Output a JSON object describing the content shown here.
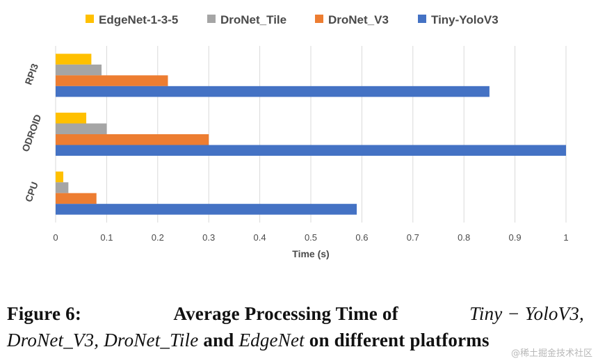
{
  "chart_data": {
    "type": "bar",
    "orientation": "horizontal",
    "categories": [
      "RPI3",
      "ODROID",
      "CPU"
    ],
    "series": [
      {
        "name": "EdgeNet-1-3-5",
        "color": "#ffc000",
        "values": [
          0.07,
          0.06,
          0.015
        ]
      },
      {
        "name": "DroNet_Tile",
        "color": "#a5a5a5",
        "values": [
          0.09,
          0.1,
          0.025
        ]
      },
      {
        "name": "DroNet_V3",
        "color": "#ed7d31",
        "values": [
          0.22,
          0.3,
          0.08
        ]
      },
      {
        "name": "Tiny-YoloV3",
        "color": "#4472c4",
        "values": [
          0.85,
          1.0,
          0.59
        ]
      }
    ],
    "xlabel": "Time (s)",
    "ylabel": "",
    "xlim": [
      0,
      1
    ],
    "xticks": [
      "0",
      "0.1",
      "0.2",
      "0.3",
      "0.4",
      "0.5",
      "0.6",
      "0.7",
      "0.8",
      "0.9",
      "1"
    ],
    "grid": "vertical",
    "legend_position": "top"
  },
  "caption": {
    "label": "Figure 6:",
    "text_a": "Average Processing Time of",
    "model_a": "Tiny − YoloV3,",
    "model_b": "DroNet_V3,",
    "model_c": "DroNet_Tile",
    "and": "and",
    "model_d": "EdgeNet",
    "tail": "on different platforms"
  },
  "watermark": "@稀土掘金技术社区"
}
